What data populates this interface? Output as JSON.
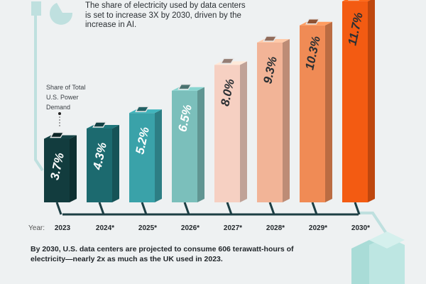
{
  "headline": "The share of electricity used by data centers is set to increase 3X by 2030, driven by the increase in AI.",
  "footer": "By 2030, U.S. data centers are projected to consume 606 terawatt-hours of electricity—nearly 2x as much as the UK used in 2023.",
  "chart_data": {
    "type": "bar",
    "ylabel": "Share of Total U.S. Power Demand",
    "x_prefix": "Year:",
    "categories": [
      "2023",
      "2024*",
      "2025*",
      "2026*",
      "2027*",
      "2028*",
      "2029*",
      "2030*"
    ],
    "values": [
      3.7,
      4.3,
      5.2,
      6.5,
      8.0,
      9.3,
      10.3,
      11.7
    ],
    "data_labels": [
      "3.7%",
      "4.3%",
      "5.2%",
      "6.5%",
      "8.0%",
      "9.3%",
      "10.3%",
      "11.7%"
    ],
    "colors": [
      "#123c3e",
      "#1c6a6f",
      "#3aa2a9",
      "#7bbfbb",
      "#f6d0c2",
      "#f2b497",
      "#f08b55",
      "#f35b12"
    ],
    "label_colors": [
      "#ffffff",
      "#ffffff",
      "#ffffff",
      "#ffffff",
      "#2a2f33",
      "#2a2f33",
      "#2a2f33",
      "#2a2f33"
    ]
  }
}
